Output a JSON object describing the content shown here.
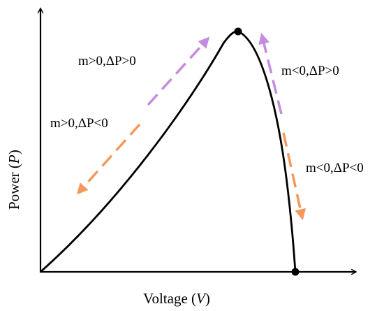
{
  "axes": {
    "x_title": "Voltage",
    "x_symbol": "V",
    "y_title": "Power",
    "y_symbol": "P"
  },
  "annotations": {
    "left_up": "m>0,ΔP>0",
    "left_down": "m>0,ΔP<0",
    "right_up": "m<0,ΔP>0",
    "right_down": "m<0,ΔP<0"
  },
  "colors": {
    "curve": "#000000",
    "increase_arrow": "#c58be0",
    "decrease_arrow": "#f4995a"
  }
}
